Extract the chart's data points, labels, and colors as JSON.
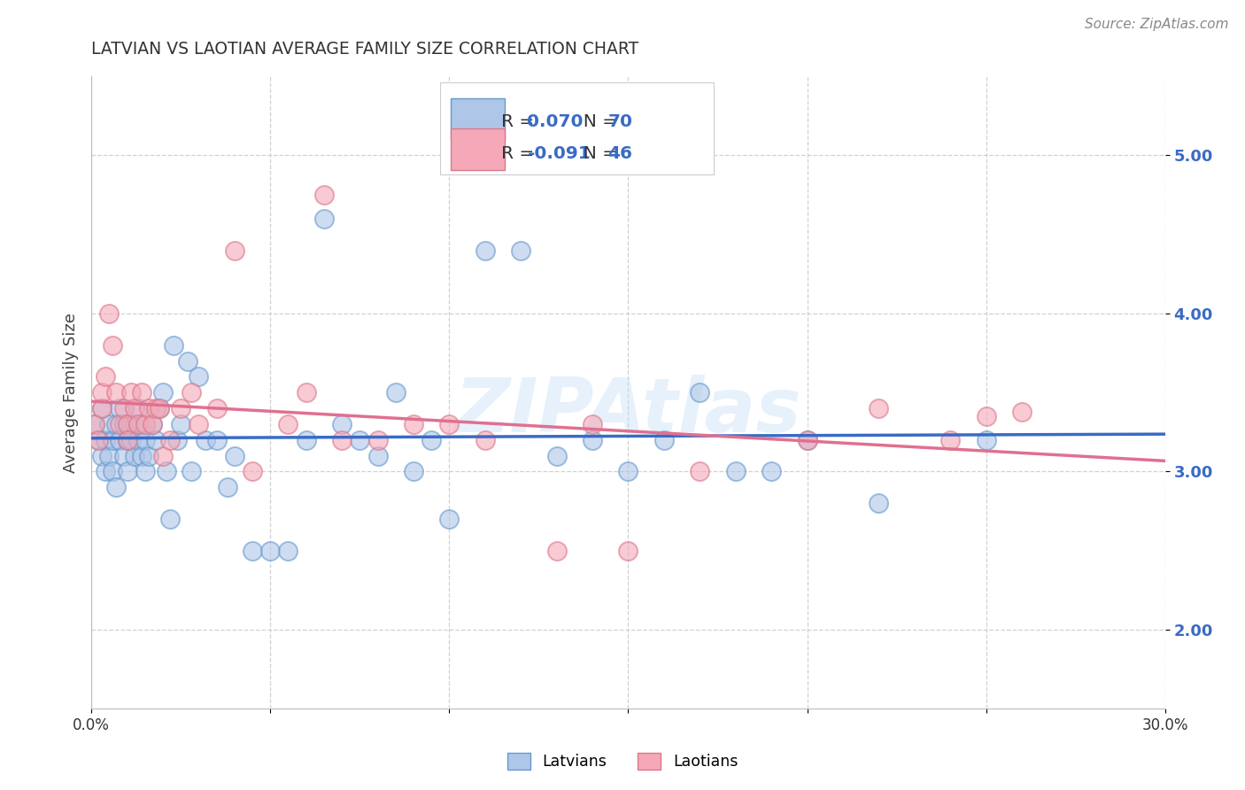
{
  "title": "LATVIAN VS LAOTIAN AVERAGE FAMILY SIZE CORRELATION CHART",
  "source": "Source: ZipAtlas.com",
  "ylabel": "Average Family Size",
  "xlim": [
    0.0,
    0.3
  ],
  "ylim": [
    1.5,
    5.5
  ],
  "yticks": [
    2.0,
    3.0,
    4.0,
    5.0
  ],
  "xticks": [
    0.0,
    0.05,
    0.1,
    0.15,
    0.2,
    0.25,
    0.3
  ],
  "xtick_labels": [
    "0.0%",
    "",
    "",
    "",
    "",
    "",
    "30.0%"
  ],
  "latvian_face": "#aec6e8",
  "latvian_edge": "#6699cc",
  "laotian_face": "#f4a8b8",
  "laotian_edge": "#dd7788",
  "trend_blue": "#3a6bc4",
  "trend_pink": "#e07090",
  "background_color": "#ffffff",
  "grid_color": "#cccccc",
  "watermark": "ZIPAtlas",
  "latvian_R_str": "0.070",
  "laotian_R_str": "-0.091",
  "latvian_N": 70,
  "laotian_N": 46,
  "latvians_x": [
    0.001,
    0.002,
    0.003,
    0.003,
    0.004,
    0.004,
    0.005,
    0.005,
    0.006,
    0.006,
    0.007,
    0.007,
    0.008,
    0.008,
    0.009,
    0.009,
    0.01,
    0.01,
    0.01,
    0.011,
    0.011,
    0.012,
    0.012,
    0.013,
    0.013,
    0.014,
    0.014,
    0.015,
    0.015,
    0.016,
    0.017,
    0.018,
    0.019,
    0.02,
    0.021,
    0.022,
    0.023,
    0.024,
    0.025,
    0.027,
    0.028,
    0.03,
    0.032,
    0.035,
    0.038,
    0.04,
    0.045,
    0.05,
    0.055,
    0.06,
    0.065,
    0.07,
    0.075,
    0.08,
    0.085,
    0.09,
    0.095,
    0.1,
    0.11,
    0.12,
    0.13,
    0.14,
    0.15,
    0.16,
    0.17,
    0.18,
    0.19,
    0.2,
    0.22,
    0.25
  ],
  "latvians_y": [
    3.3,
    3.2,
    3.1,
    3.4,
    3.2,
    3.0,
    3.3,
    3.1,
    3.2,
    3.0,
    2.9,
    3.3,
    3.2,
    3.4,
    3.1,
    3.3,
    3.2,
    3.3,
    3.0,
    3.3,
    3.2,
    3.3,
    3.1,
    3.4,
    3.2,
    3.1,
    3.3,
    3.0,
    3.2,
    3.1,
    3.3,
    3.2,
    3.4,
    3.5,
    3.0,
    2.7,
    3.8,
    3.2,
    3.3,
    3.7,
    3.0,
    3.6,
    3.2,
    3.2,
    2.9,
    3.1,
    2.5,
    2.5,
    2.5,
    3.2,
    4.6,
    3.3,
    3.2,
    3.1,
    3.5,
    3.0,
    3.2,
    2.7,
    4.4,
    4.4,
    3.1,
    3.2,
    3.0,
    3.2,
    3.5,
    3.0,
    3.0,
    3.2,
    2.8,
    3.2
  ],
  "laotians_x": [
    0.001,
    0.002,
    0.003,
    0.003,
    0.004,
    0.005,
    0.006,
    0.007,
    0.008,
    0.009,
    0.01,
    0.01,
    0.011,
    0.012,
    0.013,
    0.014,
    0.015,
    0.016,
    0.017,
    0.018,
    0.019,
    0.02,
    0.022,
    0.025,
    0.028,
    0.03,
    0.035,
    0.04,
    0.045,
    0.055,
    0.06,
    0.065,
    0.07,
    0.08,
    0.09,
    0.1,
    0.11,
    0.13,
    0.14,
    0.15,
    0.17,
    0.2,
    0.22,
    0.24,
    0.25,
    0.26
  ],
  "laotians_y": [
    3.3,
    3.2,
    3.4,
    3.5,
    3.6,
    4.0,
    3.8,
    3.5,
    3.3,
    3.4,
    3.3,
    3.2,
    3.5,
    3.4,
    3.3,
    3.5,
    3.3,
    3.4,
    3.3,
    3.4,
    3.4,
    3.1,
    3.2,
    3.4,
    3.5,
    3.3,
    3.4,
    4.4,
    3.0,
    3.3,
    3.5,
    4.75,
    3.2,
    3.2,
    3.3,
    3.3,
    3.2,
    2.5,
    3.3,
    2.5,
    3.0,
    3.2,
    3.4,
    3.2,
    3.35,
    3.38
  ]
}
